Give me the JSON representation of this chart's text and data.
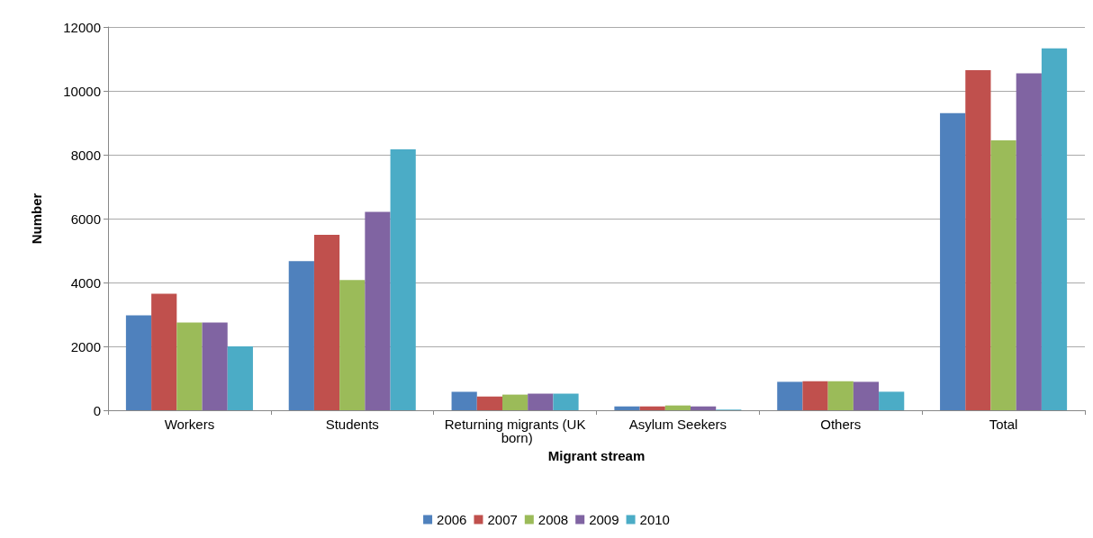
{
  "chart_data": {
    "type": "bar",
    "xlabel": "Migrant stream",
    "ylabel": "Number",
    "categories": [
      "Workers",
      "Students",
      "Returning migrants (UK born)",
      "Asylum Seekers",
      "Others",
      "Total"
    ],
    "series": [
      {
        "name": "2006",
        "color": "#4f81bd",
        "values": [
          2970,
          4670,
          580,
          120,
          890,
          9300
        ]
      },
      {
        "name": "2007",
        "color": "#c0504d",
        "values": [
          3650,
          5490,
          430,
          120,
          910,
          10650
        ]
      },
      {
        "name": "2008",
        "color": "#9bbb59",
        "values": [
          2750,
          4080,
          490,
          150,
          910,
          8450
        ]
      },
      {
        "name": "2009",
        "color": "#8064a2",
        "values": [
          2750,
          6210,
          520,
          120,
          890,
          10550
        ]
      },
      {
        "name": "2010",
        "color": "#4bacc6",
        "values": [
          2000,
          8170,
          520,
          20,
          580,
          11330
        ]
      }
    ],
    "ylim": [
      0,
      12000
    ],
    "yticks": [
      0,
      2000,
      4000,
      6000,
      8000,
      10000,
      12000
    ],
    "grid": "y",
    "legend": "bottom"
  }
}
